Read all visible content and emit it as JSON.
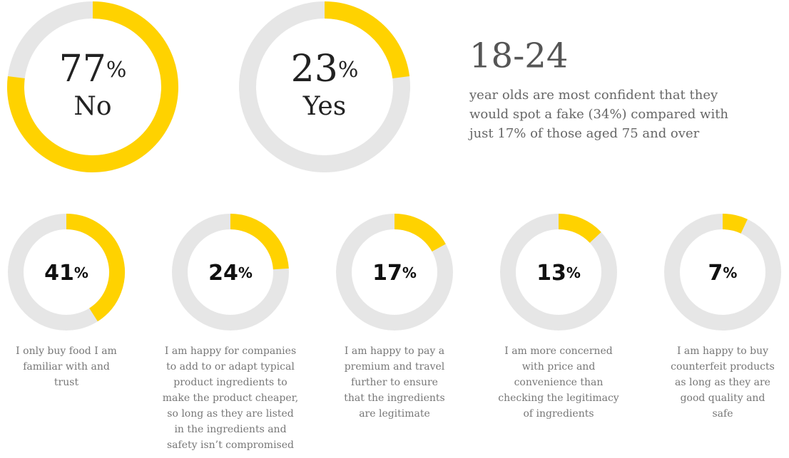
{
  "chart_data": [
    {
      "type": "donut",
      "values": [
        77
      ],
      "unit": "%",
      "label": "No",
      "color": "#ffd200",
      "track_color": "#e6e6e6"
    },
    {
      "type": "donut",
      "values": [
        23
      ],
      "unit": "%",
      "label": "Yes",
      "color": "#ffd200",
      "track_color": "#e6e6e6"
    },
    {
      "type": "donut",
      "values": [
        41
      ],
      "unit": "%",
      "color": "#ffd200",
      "track_color": "#e6e6e6",
      "caption": [
        "I only buy food I am",
        "familiar with and",
        "trust"
      ]
    },
    {
      "type": "donut",
      "values": [
        24
      ],
      "unit": "%",
      "color": "#ffd200",
      "track_color": "#e6e6e6",
      "caption": [
        "I am happy for companies",
        "to add to or adapt typical",
        "product ingredients to",
        "make the product cheaper,",
        "so long as they are listed",
        "in the ingredients and",
        "safety isn’t compromised"
      ]
    },
    {
      "type": "donut",
      "values": [
        17
      ],
      "unit": "%",
      "color": "#ffd200",
      "track_color": "#e6e6e6",
      "caption": [
        "I am happy to pay a",
        "premium and travel",
        "further to ensure",
        "that the ingredients",
        "are legitimate"
      ]
    },
    {
      "type": "donut",
      "values": [
        13
      ],
      "unit": "%",
      "color": "#ffd200",
      "track_color": "#e6e6e6",
      "caption": [
        "I am more concerned",
        "with price and",
        "convenience than",
        "checking the legitimacy",
        "of ingredients"
      ]
    },
    {
      "type": "donut",
      "values": [
        7
      ],
      "unit": "%",
      "color": "#ffd200",
      "track_color": "#e6e6e6",
      "caption": [
        "I am happy to buy",
        "counterfeit products",
        "as long as they are",
        "good quality and",
        "safe"
      ]
    }
  ],
  "callout": {
    "title": "18-24",
    "text": [
      "year olds are most confident that they",
      "would spot a fake (34%) compared with",
      "just 17% of those aged 75 and over"
    ]
  }
}
